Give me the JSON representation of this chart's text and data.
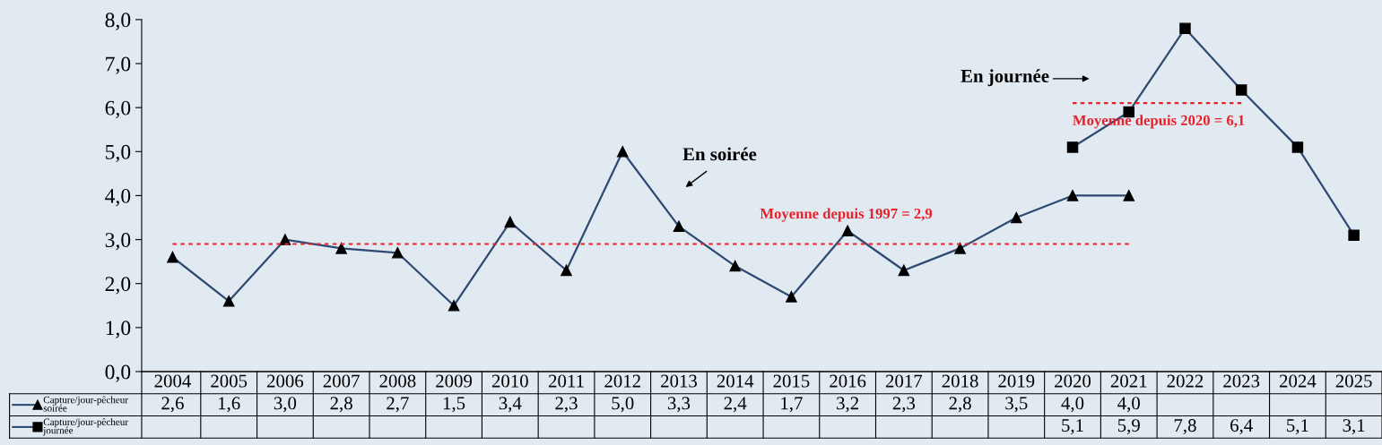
{
  "chart_data": {
    "type": "line",
    "categories": [
      "2004",
      "2005",
      "2006",
      "2007",
      "2008",
      "2009",
      "2010",
      "2011",
      "2012",
      "2013",
      "2014",
      "2015",
      "2016",
      "2017",
      "2018",
      "2019",
      "2020",
      "2021",
      "2022",
      "2023",
      "2024",
      "2025"
    ],
    "series": [
      {
        "name": "Capture/jour-pêcheur soirée",
        "color": "#2e4a72",
        "marker": "triangle",
        "values": [
          2.6,
          1.6,
          3.0,
          2.8,
          2.7,
          1.5,
          3.4,
          2.3,
          5.0,
          3.3,
          2.4,
          1.7,
          3.2,
          2.3,
          2.8,
          3.5,
          4.0,
          4.0,
          null,
          null,
          null,
          null
        ],
        "value_labels": [
          "2,6",
          "1,6",
          "3,0",
          "2,8",
          "2,7",
          "1,5",
          "3,4",
          "2,3",
          "5,0",
          "3,3",
          "2,4",
          "1,7",
          "3,2",
          "2,3",
          "2,8",
          "3,5",
          "4,0",
          "4,0",
          null,
          null,
          null,
          null
        ]
      },
      {
        "name": "Capture/jour-pêcheur journée",
        "color": "#2e4a72",
        "marker": "square",
        "values": [
          null,
          null,
          null,
          null,
          null,
          null,
          null,
          null,
          null,
          null,
          null,
          null,
          null,
          null,
          null,
          null,
          5.1,
          5.9,
          7.8,
          6.4,
          5.1,
          3.1
        ],
        "value_labels": [
          null,
          null,
          null,
          null,
          null,
          null,
          null,
          null,
          null,
          null,
          null,
          null,
          null,
          null,
          null,
          null,
          "5,1",
          "5,9",
          "7,8",
          "6,4",
          "5,1",
          "3,1"
        ]
      },
      {
        "color": "#e8202a",
        "marker": "none",
        "line_style": "dotted",
        "values": [
          2.9,
          2.9,
          2.9,
          2.9,
          2.9,
          2.9,
          2.9,
          2.9,
          2.9,
          2.9,
          2.9,
          2.9,
          2.9,
          2.9,
          2.9,
          2.9,
          2.9,
          2.9,
          null,
          null,
          null,
          null
        ]
      },
      {
        "color": "#e8202a",
        "marker": "none",
        "line_style": "dotted",
        "values": [
          null,
          null,
          null,
          null,
          null,
          null,
          null,
          null,
          null,
          null,
          null,
          null,
          null,
          null,
          null,
          null,
          6.1,
          6.1,
          6.1,
          6.1,
          null,
          null
        ]
      }
    ],
    "ylim": [
      0,
      8
    ],
    "yticks": [
      {
        "value": 0,
        "label": "0,0"
      },
      {
        "value": 1,
        "label": "1,0"
      },
      {
        "value": 2,
        "label": "2,0"
      },
      {
        "value": 3,
        "label": "3,0"
      },
      {
        "value": 4,
        "label": "4,0"
      },
      {
        "value": 5,
        "label": "5,0"
      },
      {
        "value": 6,
        "label": "6,0"
      },
      {
        "value": 7,
        "label": "7,0"
      },
      {
        "value": 8,
        "label": "8,0"
      }
    ],
    "grid": false,
    "legend": "bottom left",
    "annotations": [
      "En soirée",
      "En journée",
      "Moyenne depuis 1997 = 2,9",
      "Moyenne depuis 2020 = 6,1"
    ]
  }
}
